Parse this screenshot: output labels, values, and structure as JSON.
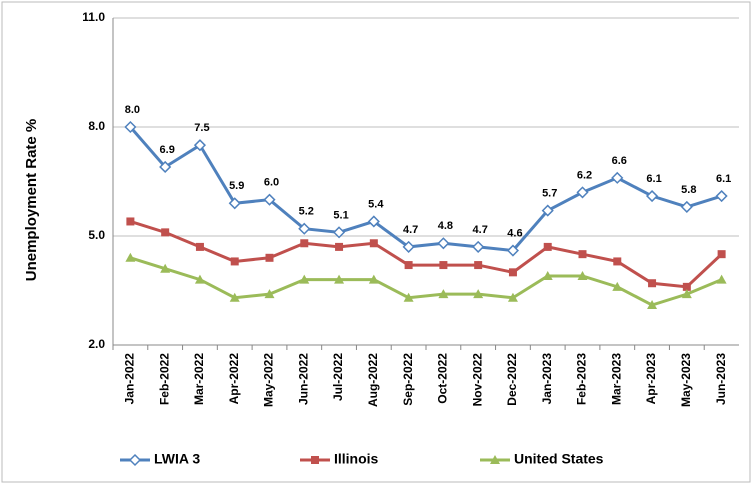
{
  "chart_data": {
    "type": "line",
    "y_label": "Unemployment Rate %",
    "categories": [
      "Jan-2022",
      "Feb-2022",
      "Mar-2022",
      "Apr-2022",
      "May-2022",
      "Jun-2022",
      "Jul-2022",
      "Aug-2022",
      "Sep-2022",
      "Oct-2022",
      "Nov-2022",
      "Dec-2022",
      "Jan-2023",
      "Feb-2023",
      "Mar-2023",
      "Apr-2023",
      "May-2023",
      "Jun-2023"
    ],
    "series": [
      {
        "name": "LWIA 3",
        "color": "#4f81bd",
        "marker": "diamond",
        "values": [
          8.0,
          6.9,
          7.5,
          5.9,
          6.0,
          5.2,
          5.1,
          5.4,
          4.7,
          4.8,
          4.7,
          4.6,
          5.7,
          6.2,
          6.6,
          6.1,
          5.8,
          6.1
        ],
        "value_labels": [
          "8.0",
          "6.9",
          "7.5",
          "5.9",
          "6.0",
          "5.2",
          "5.1",
          "5.4",
          "4.7",
          "4.8",
          "4.7",
          "4.6",
          "5.7",
          "6.2",
          "6.6",
          "6.1",
          "5.8",
          "6.1"
        ]
      },
      {
        "name": "Illinois",
        "color": "#c0504d",
        "marker": "square",
        "values": [
          5.4,
          5.1,
          4.7,
          4.3,
          4.4,
          4.8,
          4.7,
          4.8,
          4.2,
          4.2,
          4.2,
          4.0,
          4.7,
          4.5,
          4.3,
          3.7,
          3.6,
          4.5
        ]
      },
      {
        "name": "United States",
        "color": "#9bbb59",
        "marker": "triangle",
        "values": [
          4.4,
          4.1,
          3.8,
          3.3,
          3.4,
          3.8,
          3.8,
          3.8,
          3.3,
          3.4,
          3.4,
          3.3,
          3.9,
          3.9,
          3.6,
          3.1,
          3.4,
          3.8
        ]
      }
    ],
    "ylim": [
      2.0,
      11.0
    ],
    "yticks": [
      {
        "value": 2,
        "label": "2.0"
      },
      {
        "value": 5,
        "label": "5.0"
      },
      {
        "value": 8,
        "label": "8.0"
      },
      {
        "value": 11,
        "label": "11.0"
      }
    ],
    "grid": true,
    "legend": "bottom"
  }
}
